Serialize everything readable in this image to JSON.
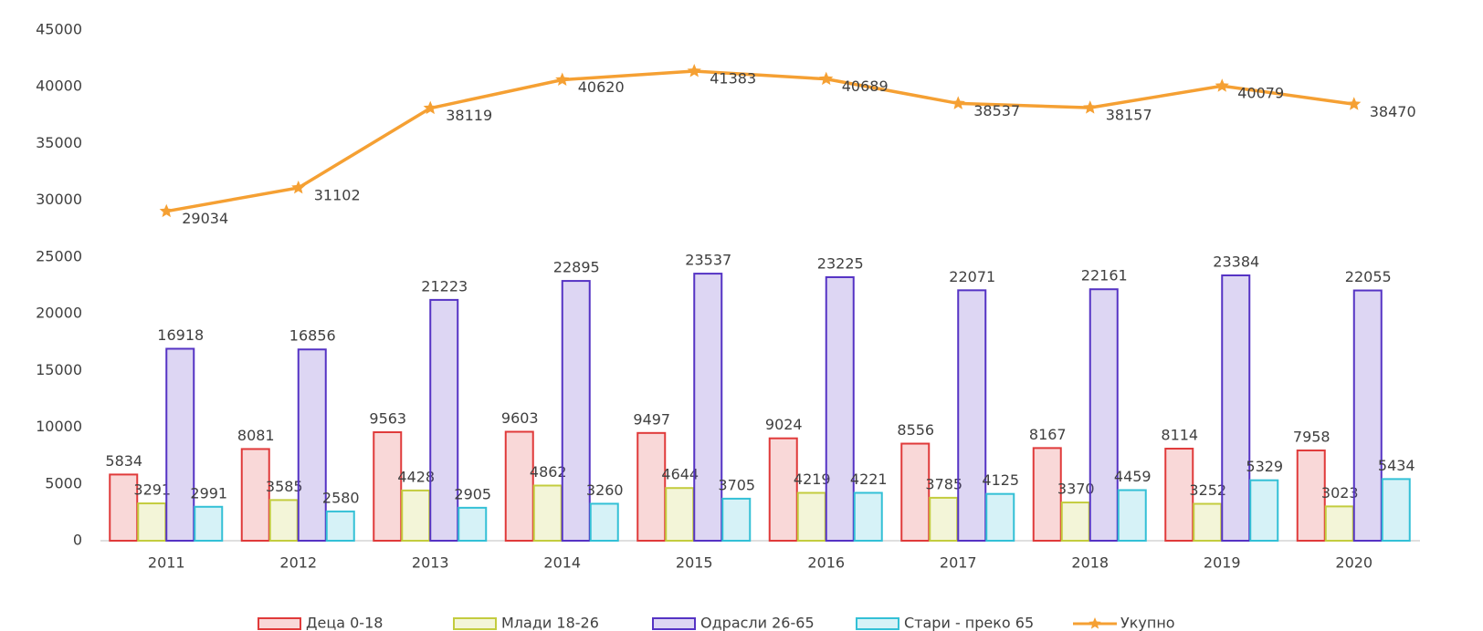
{
  "chart_data": {
    "type": "bar",
    "categories": [
      "2011",
      "2012",
      "2013",
      "2014",
      "2015",
      "2016",
      "2017",
      "2018",
      "2019",
      "2020"
    ],
    "series": [
      {
        "name": "Деца 0-18",
        "color": "#e03a3a",
        "values": [
          5834,
          8081,
          9563,
          9603,
          9497,
          9024,
          8556,
          8167,
          8114,
          7958
        ]
      },
      {
        "name": "Млади 18-26",
        "color": "#c3cc3e",
        "values": [
          3291,
          3585,
          4428,
          4862,
          4644,
          4219,
          3785,
          3370,
          3252,
          3023
        ]
      },
      {
        "name": "Одрасли 26-65",
        "color": "#5533c4",
        "values": [
          16918,
          16856,
          21223,
          22895,
          23537,
          23225,
          22071,
          22161,
          23384,
          22055
        ]
      },
      {
        "name": "Стари - преко 65",
        "color": "#33c0d6",
        "values": [
          2991,
          2580,
          2905,
          3260,
          3705,
          4221,
          4125,
          4459,
          5329,
          5434
        ]
      },
      {
        "name": "Укупно",
        "type": "line",
        "color": "#f5a033",
        "values": [
          29034,
          31102,
          38119,
          40620,
          41383,
          40689,
          38537,
          38157,
          40079,
          38470
        ]
      }
    ],
    "ylim": [
      0,
      45000
    ],
    "yticks": [
      0,
      5000,
      10000,
      15000,
      20000,
      25000,
      30000,
      35000,
      40000,
      45000
    ],
    "grid": false,
    "legend": "bottom"
  }
}
